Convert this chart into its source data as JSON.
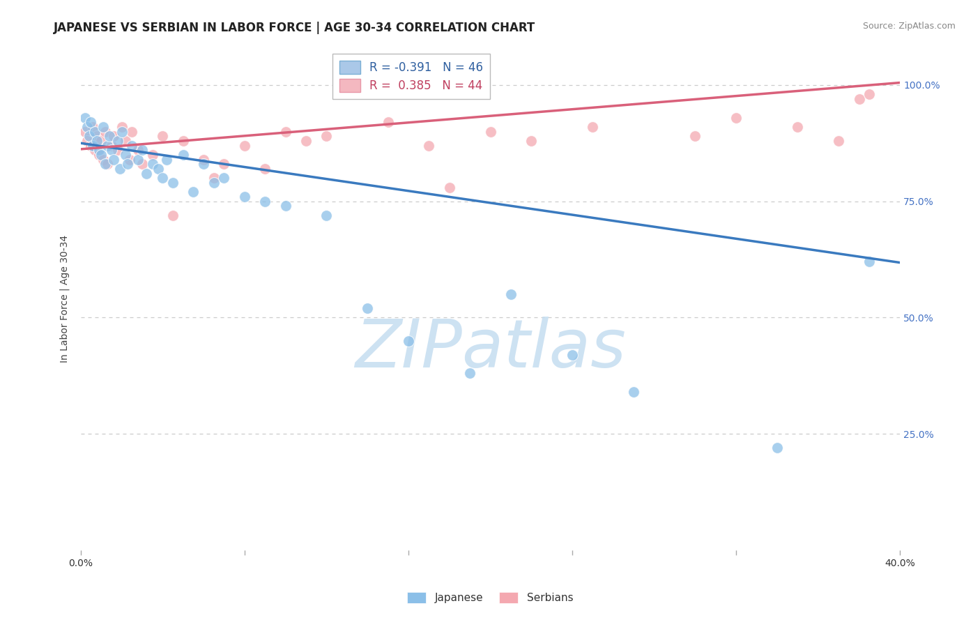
{
  "title": "JAPANESE VS SERBIAN IN LABOR FORCE | AGE 30-34 CORRELATION CHART",
  "source": "Source: ZipAtlas.com",
  "ylabel": "In Labor Force | Age 30-34",
  "x_min": 0.0,
  "x_max": 0.4,
  "y_min": 0.0,
  "y_max": 1.08,
  "watermark_text": "ZIPatlas",
  "legend_blue_r": -0.391,
  "legend_blue_n": 46,
  "legend_pink_r": 0.385,
  "legend_pink_n": 44,
  "blue_scatter_color": "#8bbfe8",
  "pink_scatter_color": "#f4a8b0",
  "blue_line_color": "#3a7abf",
  "pink_line_color": "#d9607a",
  "blue_line_x0": 0.0,
  "blue_line_y0": 0.875,
  "blue_line_x1": 0.4,
  "blue_line_y1": 0.618,
  "pink_line_x0": 0.0,
  "pink_line_y0": 0.862,
  "pink_line_x1": 0.4,
  "pink_line_y1": 1.005,
  "jp_x": [
    0.002,
    0.003,
    0.004,
    0.005,
    0.006,
    0.007,
    0.008,
    0.009,
    0.01,
    0.011,
    0.012,
    0.013,
    0.014,
    0.015,
    0.016,
    0.018,
    0.019,
    0.02,
    0.022,
    0.023,
    0.025,
    0.028,
    0.03,
    0.032,
    0.035,
    0.038,
    0.04,
    0.042,
    0.045,
    0.05,
    0.055,
    0.06,
    0.065,
    0.07,
    0.08,
    0.09,
    0.1,
    0.12,
    0.14,
    0.16,
    0.19,
    0.21,
    0.24,
    0.27,
    0.34,
    0.385
  ],
  "jp_y": [
    0.93,
    0.91,
    0.89,
    0.92,
    0.87,
    0.9,
    0.88,
    0.86,
    0.85,
    0.91,
    0.83,
    0.87,
    0.89,
    0.86,
    0.84,
    0.88,
    0.82,
    0.9,
    0.85,
    0.83,
    0.87,
    0.84,
    0.86,
    0.81,
    0.83,
    0.82,
    0.8,
    0.84,
    0.79,
    0.85,
    0.77,
    0.83,
    0.79,
    0.8,
    0.76,
    0.75,
    0.74,
    0.72,
    0.52,
    0.45,
    0.38,
    0.55,
    0.42,
    0.34,
    0.22,
    0.62
  ],
  "sr_x": [
    0.002,
    0.003,
    0.005,
    0.006,
    0.007,
    0.008,
    0.009,
    0.01,
    0.011,
    0.012,
    0.013,
    0.015,
    0.016,
    0.018,
    0.02,
    0.022,
    0.024,
    0.025,
    0.028,
    0.03,
    0.035,
    0.04,
    0.045,
    0.05,
    0.06,
    0.065,
    0.07,
    0.08,
    0.09,
    0.1,
    0.11,
    0.12,
    0.15,
    0.17,
    0.18,
    0.2,
    0.22,
    0.25,
    0.3,
    0.32,
    0.35,
    0.37,
    0.38,
    0.385
  ],
  "sr_y": [
    0.9,
    0.88,
    0.87,
    0.91,
    0.86,
    0.89,
    0.85,
    0.88,
    0.84,
    0.9,
    0.83,
    0.87,
    0.89,
    0.86,
    0.91,
    0.88,
    0.84,
    0.9,
    0.86,
    0.83,
    0.85,
    0.89,
    0.72,
    0.88,
    0.84,
    0.8,
    0.83,
    0.87,
    0.82,
    0.9,
    0.88,
    0.89,
    0.92,
    0.87,
    0.78,
    0.9,
    0.88,
    0.91,
    0.89,
    0.93,
    0.91,
    0.88,
    0.97,
    0.98
  ],
  "ytick_vals": [
    0.25,
    0.5,
    0.75,
    1.0
  ],
  "ytick_labels": [
    "25.0%",
    "50.0%",
    "75.0%",
    "100.0%"
  ],
  "xtick_vals": [
    0.0,
    0.08,
    0.16,
    0.24,
    0.32,
    0.4
  ],
  "xtick_show_labels": [
    true,
    false,
    false,
    false,
    false,
    true
  ],
  "xtick_label_texts": [
    "0.0%",
    "",
    "",
    "",
    "",
    "40.0%"
  ],
  "title_fontsize": 12,
  "axis_label_fontsize": 10,
  "tick_label_fontsize": 10,
  "right_tick_color": "#4472c4",
  "grid_color": "#cccccc",
  "watermark_color": "#c5ddf0",
  "watermark_fontsize": 70,
  "scatter_size": 130,
  "scatter_alpha": 0.75
}
